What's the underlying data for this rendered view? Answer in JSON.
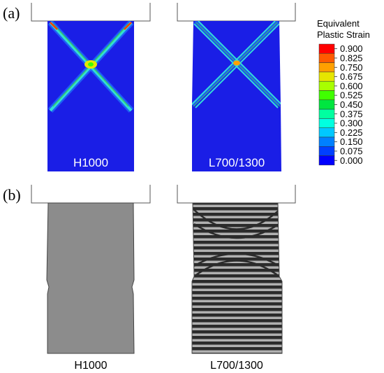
{
  "panels": {
    "a": {
      "label": "(a)"
    },
    "b": {
      "label": "(b)"
    }
  },
  "specimens": {
    "left": {
      "name": "H1000"
    },
    "right": {
      "name": "L700/1300"
    }
  },
  "legend": {
    "title_line1": "Equivalent",
    "title_line2": "Plastic Strain",
    "entries": [
      {
        "value": "0.900",
        "color": "#ff0000"
      },
      {
        "value": "0.825",
        "color": "#ff5a00"
      },
      {
        "value": "0.750",
        "color": "#ffa000"
      },
      {
        "value": "0.675",
        "color": "#e6e600"
      },
      {
        "value": "0.600",
        "color": "#a8ff00"
      },
      {
        "value": "0.525",
        "color": "#40ff00"
      },
      {
        "value": "0.450",
        "color": "#00e640"
      },
      {
        "value": "0.375",
        "color": "#00ffa0"
      },
      {
        "value": "0.300",
        "color": "#00ffe0"
      },
      {
        "value": "0.225",
        "color": "#00c8ff"
      },
      {
        "value": "0.150",
        "color": "#0080ff"
      },
      {
        "value": "0.075",
        "color": "#0040ff"
      },
      {
        "value": "0.000",
        "color": "#0000ff"
      }
    ]
  },
  "colors": {
    "specimen_blue": "#1a1ee6",
    "specimen_grey": "#8c8c8c",
    "stripe_dark": "#2b2b2b",
    "stripe_light": "#b0b0b0",
    "shear_band_cyan": "#33dcd8",
    "shear_band_green": "#36d066"
  }
}
